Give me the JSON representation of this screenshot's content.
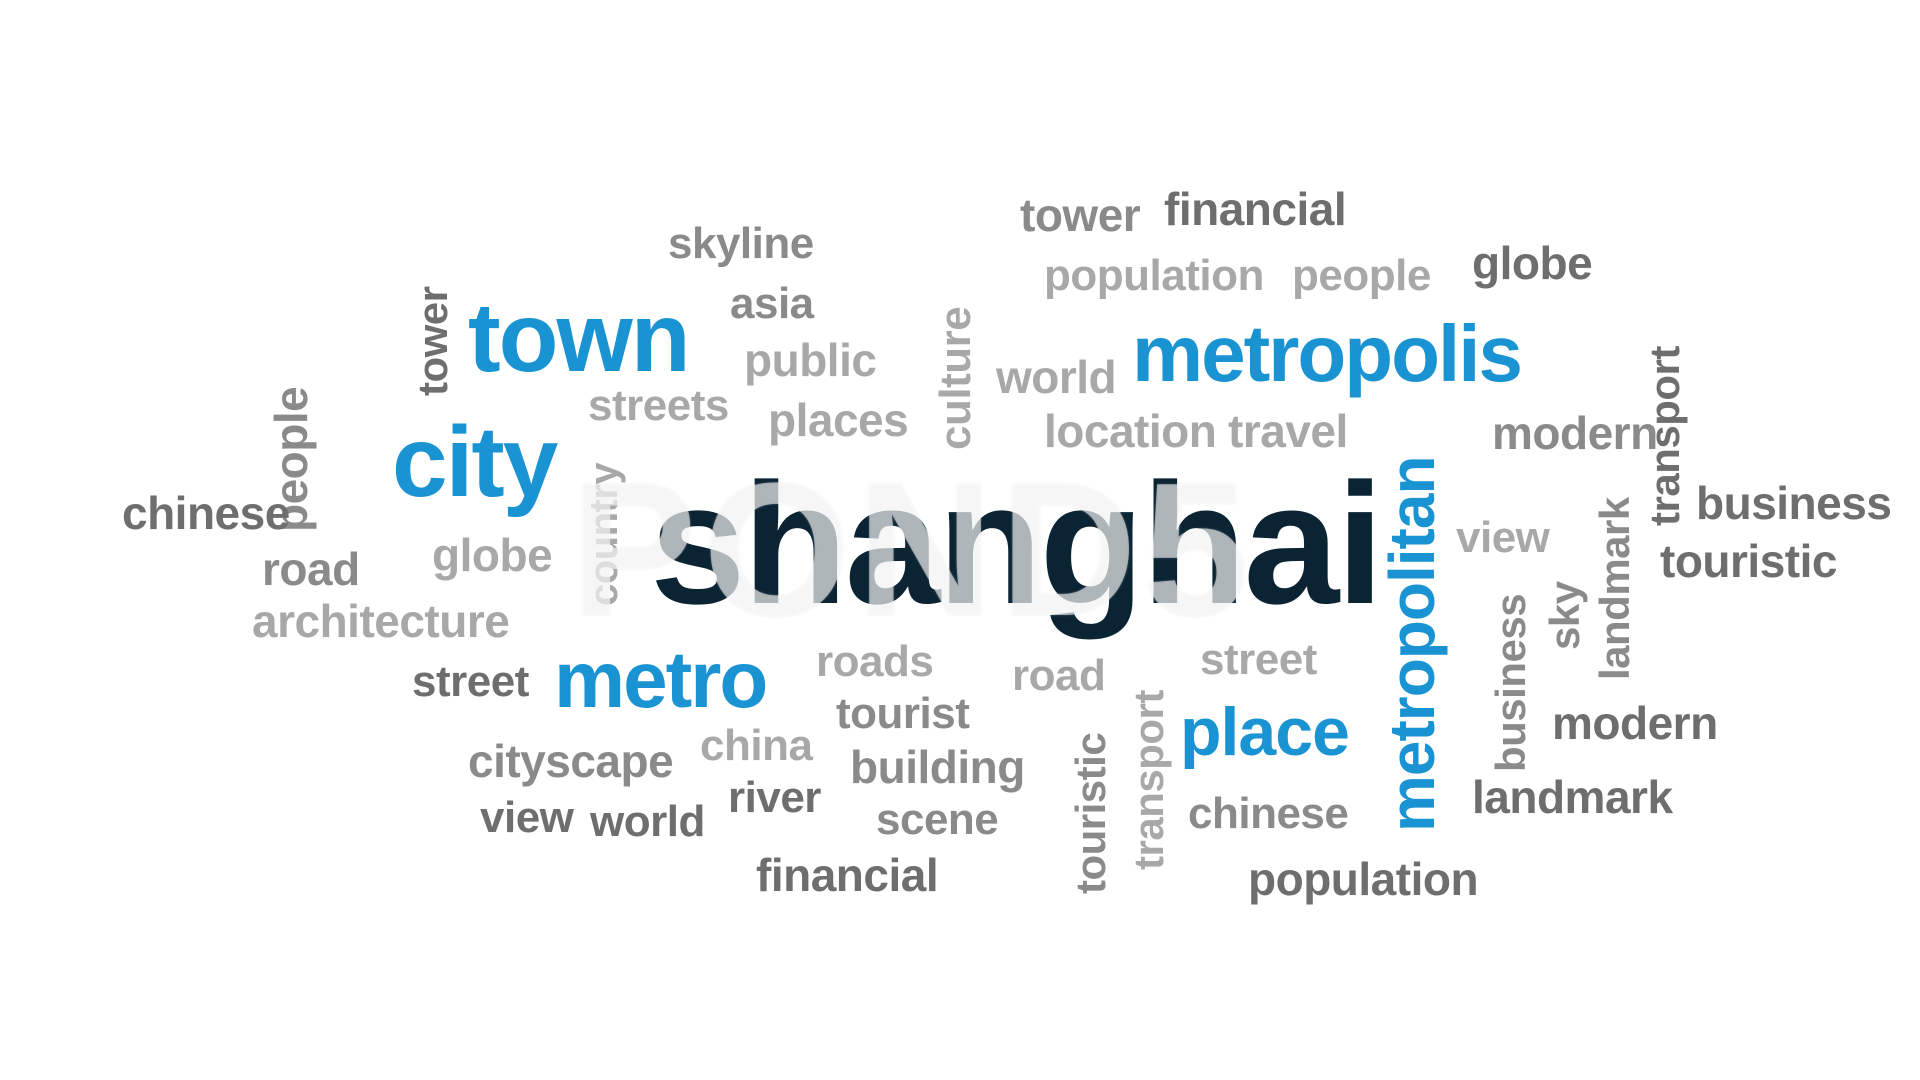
{
  "colors": {
    "background": "#ffffff",
    "main_word": "#0b2433",
    "accent_blue": "#1a93d2",
    "dark_gray": "#6e6e6e",
    "mid_gray": "#8a8a8a",
    "light_gray": "#a8a8a8"
  },
  "watermark": "POND5",
  "words": {
    "shanghai": "shanghai",
    "town": "town",
    "city": "city",
    "metro": "metro",
    "metropolis": "metropolis",
    "metropolitan": "metropolitan",
    "place": "place",
    "skyline": "skyline",
    "asia": "asia",
    "public": "public",
    "streets": "streets",
    "places": "places",
    "tower_vertical": "tower",
    "people_vertical": "people",
    "chinese_left": "chinese",
    "road_left": "road",
    "globe_left": "globe",
    "country": "country",
    "architecture": "architecture",
    "street_left": "street",
    "roads": "roads",
    "tourist": "tourist",
    "cityscape": "cityscape",
    "china": "china",
    "building": "building",
    "view_left": "view",
    "world_left": "world",
    "river": "river",
    "scene": "scene",
    "financial_bottom": "financial",
    "culture": "culture",
    "tower_top": "tower",
    "financial_top": "financial",
    "population_top": "population",
    "people_top": "people",
    "globe_right": "globe",
    "world_mid": "world",
    "location": "location",
    "travel": "travel",
    "road_mid": "road",
    "street_mid": "street",
    "touristic_vertical": "touristic",
    "transport_vertical_mid": "transport",
    "chinese_mid": "chinese",
    "population_bottom": "population",
    "modern_top": "modern",
    "transport_vertical_right": "transport",
    "business_right": "business",
    "touristic_right": "touristic",
    "view_right": "view",
    "sky": "sky",
    "landmark_vertical": "landmark",
    "business_vertical": "business",
    "modern_bottom": "modern",
    "landmark_bottom": "landmark"
  }
}
